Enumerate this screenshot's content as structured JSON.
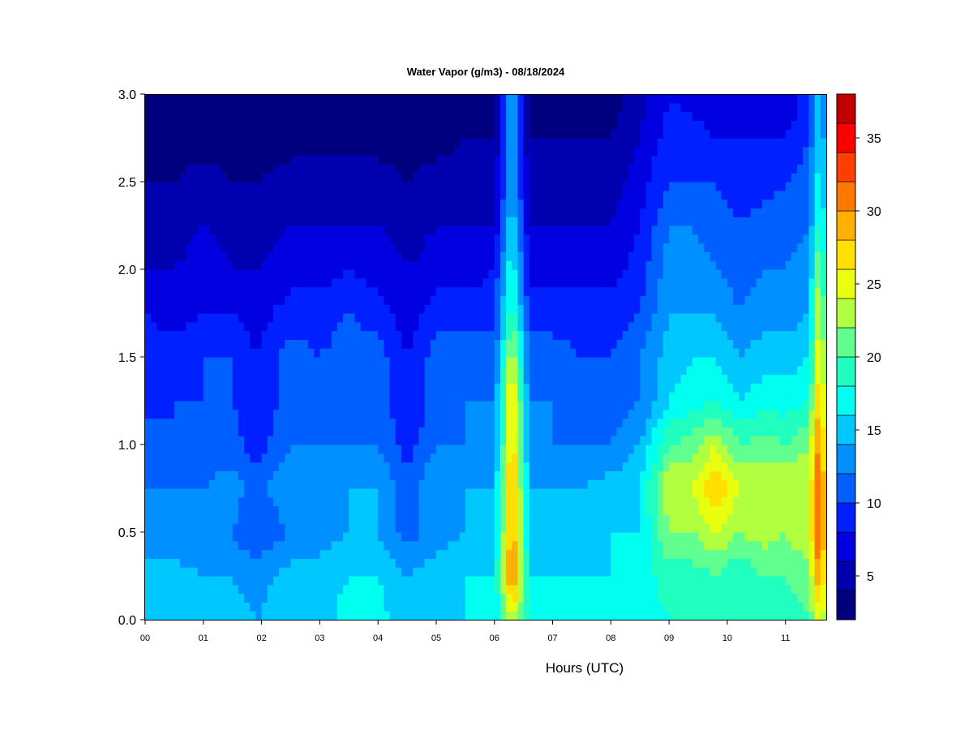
{
  "chart_data": {
    "type": "heatmap",
    "title": "Water Vapor (g/m3) - 08/18/2024",
    "xlabel": "Hours (UTC)",
    "ylabel": "",
    "x_ticks": [
      "00",
      "01",
      "02",
      "03",
      "04",
      "05",
      "06",
      "07",
      "08",
      "09",
      "10",
      "11"
    ],
    "y_ticks": [
      "0.0",
      "0.5",
      "1.0",
      "1.5",
      "2.0",
      "2.5",
      "3.0"
    ],
    "xlim": [
      0,
      11.7
    ],
    "ylim": [
      0,
      3.0
    ],
    "colorbar": {
      "ticks": [
        "5",
        "10",
        "15",
        "20",
        "25",
        "30",
        "35"
      ],
      "tick_values": [
        5,
        10,
        15,
        20,
        25,
        30,
        35
      ],
      "range": [
        2,
        38
      ],
      "levels": [
        2,
        4,
        6,
        8,
        10,
        12,
        14,
        16,
        18,
        20,
        22,
        24,
        26,
        28,
        30,
        32,
        34,
        36,
        38
      ],
      "colors": [
        "#00007F",
        "#0000B0",
        "#0000E0",
        "#0020FF",
        "#0060FF",
        "#0090FF",
        "#00C8FF",
        "#00FFF0",
        "#20FFC0",
        "#60FF90",
        "#B0FF40",
        "#E8FF10",
        "#FFE000",
        "#FFB000",
        "#FF7800",
        "#FF4000",
        "#FF0000",
        "#C00000",
        "#800000"
      ]
    },
    "profiles": {
      "heights_km": [
        0.0,
        0.25,
        0.5,
        0.75,
        1.0,
        1.25,
        1.5,
        1.75,
        2.0,
        2.25,
        2.5,
        2.75,
        3.0
      ],
      "series": [
        {
          "hour": 0.0,
          "values": [
            15,
            15,
            13,
            12,
            11,
            9,
            9,
            8,
            6,
            5,
            4,
            3,
            2
          ]
        },
        {
          "hour": 0.5,
          "values": [
            15,
            15,
            12,
            12,
            10,
            10,
            9,
            7,
            6,
            5,
            4,
            3,
            2
          ]
        },
        {
          "hour": 1.0,
          "values": [
            15,
            14,
            12,
            12,
            11,
            10,
            10,
            8,
            7,
            6,
            5,
            3,
            2
          ]
        },
        {
          "hour": 1.5,
          "values": [
            15,
            14,
            12,
            13,
            11,
            10,
            10,
            8,
            6,
            5,
            4,
            3,
            2
          ]
        },
        {
          "hour": 1.9,
          "values": [
            14,
            13,
            10,
            11,
            9,
            8,
            8,
            7,
            6,
            5,
            4,
            3,
            2
          ]
        },
        {
          "hour": 2.5,
          "values": [
            15,
            15,
            12,
            14,
            12,
            11,
            11,
            9,
            7,
            6,
            5,
            3,
            2
          ]
        },
        {
          "hour": 3.0,
          "values": [
            15,
            15,
            13,
            13,
            12,
            11,
            10,
            9,
            7,
            6,
            5,
            3,
            2
          ]
        },
        {
          "hour": 3.5,
          "values": [
            17,
            16,
            14,
            14,
            12,
            11,
            11,
            10,
            8,
            6,
            5,
            3,
            2
          ]
        },
        {
          "hour": 4.0,
          "values": [
            17,
            16,
            14,
            14,
            12,
            11,
            11,
            9,
            7,
            6,
            5,
            3,
            2
          ]
        },
        {
          "hour": 4.5,
          "values": [
            14,
            14,
            11,
            11,
            9,
            8,
            8,
            7,
            6,
            5,
            4,
            3,
            2
          ]
        },
        {
          "hour": 5.0,
          "values": [
            15,
            15,
            13,
            14,
            12,
            11,
            11,
            9,
            7,
            6,
            5,
            3,
            2
          ]
        },
        {
          "hour": 5.5,
          "values": [
            16,
            16,
            14,
            14,
            12,
            12,
            11,
            9,
            7,
            6,
            5,
            4,
            2
          ]
        },
        {
          "hour": 6.0,
          "values": [
            16,
            16,
            14,
            14,
            12,
            12,
            11,
            9,
            8,
            6,
            5,
            4,
            3
          ]
        },
        {
          "hour": 6.3,
          "values": [
            24,
            32,
            30,
            30,
            28,
            28,
            24,
            20,
            18,
            16,
            14,
            14,
            14
          ]
        },
        {
          "hour": 6.6,
          "values": [
            17,
            16,
            15,
            14,
            13,
            12,
            11,
            9,
            7,
            6,
            5,
            4,
            3
          ]
        },
        {
          "hour": 7.0,
          "values": [
            17,
            16,
            15,
            14,
            12,
            12,
            11,
            9,
            7,
            6,
            5,
            4,
            3
          ]
        },
        {
          "hour": 7.5,
          "values": [
            16,
            16,
            15,
            14,
            12,
            11,
            10,
            9,
            7,
            6,
            5,
            4,
            3
          ]
        },
        {
          "hour": 8.0,
          "values": [
            16,
            16,
            16,
            15,
            12,
            11,
            10,
            9,
            7,
            6,
            5,
            4,
            3
          ]
        },
        {
          "hour": 8.5,
          "values": [
            17,
            17,
            16,
            16,
            14,
            12,
            12,
            10,
            9,
            8,
            7,
            6,
            5
          ]
        },
        {
          "hour": 9.0,
          "values": [
            18,
            19,
            22,
            24,
            20,
            16,
            15,
            14,
            13,
            12,
            10,
            9,
            8
          ]
        },
        {
          "hour": 9.4,
          "values": [
            18,
            19,
            22,
            24,
            21,
            17,
            16,
            14,
            13,
            12,
            10,
            9,
            7
          ]
        },
        {
          "hour": 9.8,
          "values": [
            19,
            20,
            24,
            28,
            24,
            18,
            16,
            14,
            12,
            11,
            10,
            8,
            6
          ]
        },
        {
          "hour": 10.2,
          "values": [
            18,
            18,
            22,
            24,
            20,
            16,
            14,
            12,
            11,
            10,
            9,
            8,
            6
          ]
        },
        {
          "hour": 10.6,
          "values": [
            19,
            20,
            23,
            24,
            21,
            17,
            15,
            13,
            12,
            11,
            9,
            8,
            6
          ]
        },
        {
          "hour": 11.0,
          "values": [
            19,
            20,
            22,
            24,
            20,
            17,
            15,
            13,
            12,
            11,
            10,
            8,
            6
          ]
        },
        {
          "hour": 11.4,
          "values": [
            20,
            21,
            24,
            24,
            22,
            18,
            16,
            14,
            13,
            12,
            11,
            10,
            9
          ]
        },
        {
          "hour": 11.6,
          "values": [
            26,
            32,
            34,
            34,
            32,
            30,
            28,
            26,
            24,
            20,
            18,
            17,
            16
          ]
        },
        {
          "hour": 11.7,
          "values": [
            20,
            22,
            24,
            24,
            22,
            20,
            18,
            16,
            14,
            13,
            12,
            11,
            10
          ]
        }
      ]
    }
  }
}
